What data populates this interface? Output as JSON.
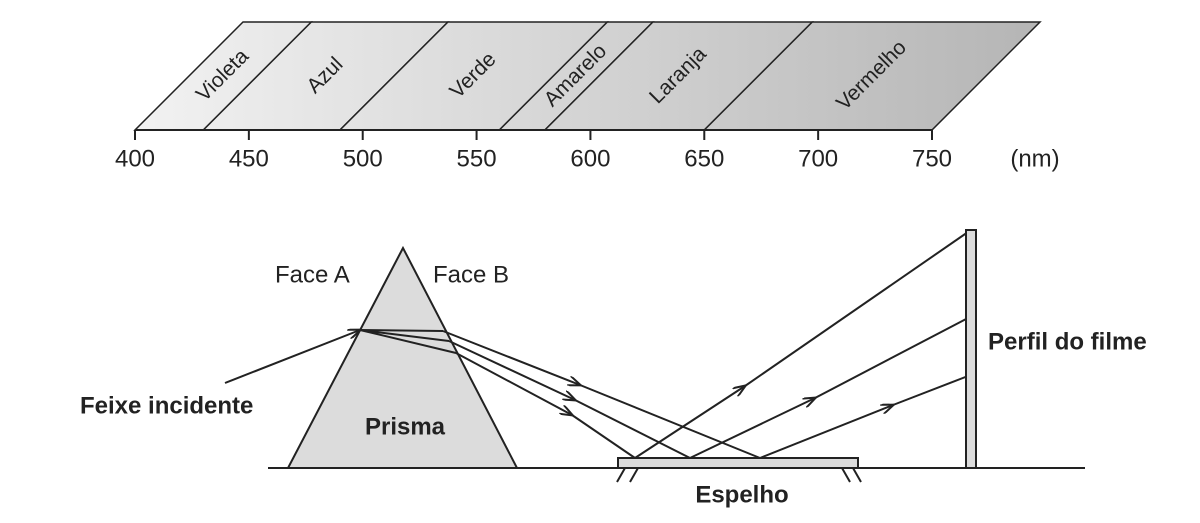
{
  "spectrum": {
    "bands": [
      {
        "label": "Violeta",
        "from": 400,
        "to": 430
      },
      {
        "label": "Azul",
        "from": 430,
        "to": 490
      },
      {
        "label": "Verde",
        "from": 490,
        "to": 560
      },
      {
        "label": "Amarelo",
        "from": 560,
        "to": 580
      },
      {
        "label": "Laranja",
        "from": 580,
        "to": 650
      },
      {
        "label": "Vermelho",
        "from": 650,
        "to": 750
      }
    ],
    "ticks": [
      400,
      450,
      500,
      550,
      600,
      650,
      700,
      750
    ],
    "unit": "(nm)"
  },
  "labels": {
    "face_a": "Face A",
    "face_b": "Face B",
    "incident": "Feixe incidente",
    "prism": "Prisma",
    "mirror": "Espelho",
    "film": "Perfil do filme"
  }
}
